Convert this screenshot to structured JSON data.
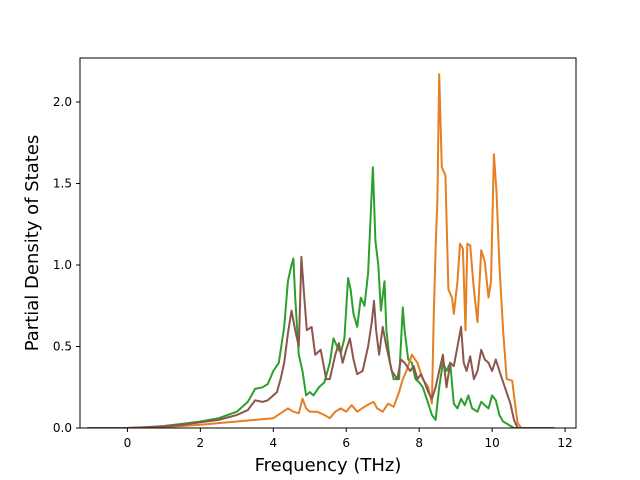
{
  "chart_data": {
    "type": "line",
    "title": "",
    "xlabel": "Frequency (THz)",
    "ylabel": "Partial Density of States",
    "xlim": [
      -1.3,
      12.3
    ],
    "ylim": [
      0,
      2.27
    ],
    "xticks": [
      0,
      2,
      4,
      6,
      8,
      10,
      12
    ],
    "yticks": [
      0.0,
      0.5,
      1.0,
      1.5,
      2.0
    ],
    "xtick_labels": [
      "0",
      "2",
      "4",
      "6",
      "8",
      "10",
      "12"
    ],
    "ytick_labels": [
      "0.0",
      "0.5",
      "1.0",
      "1.5",
      "2.0"
    ],
    "grid": false,
    "legend": "none",
    "series": [
      {
        "color": "#2ca02c",
        "points": [
          [
            -1.1,
            0
          ],
          [
            0,
            0
          ],
          [
            0.5,
            0.004
          ],
          [
            1.0,
            0.012
          ],
          [
            1.5,
            0.025
          ],
          [
            2.0,
            0.04
          ],
          [
            2.5,
            0.06
          ],
          [
            3.0,
            0.1
          ],
          [
            3.3,
            0.16
          ],
          [
            3.5,
            0.24
          ],
          [
            3.7,
            0.25
          ],
          [
            3.85,
            0.27
          ],
          [
            4.0,
            0.35
          ],
          [
            4.15,
            0.4
          ],
          [
            4.3,
            0.62
          ],
          [
            4.4,
            0.9
          ],
          [
            4.5,
            1.0
          ],
          [
            4.55,
            1.04
          ],
          [
            4.6,
            0.8
          ],
          [
            4.7,
            0.45
          ],
          [
            4.8,
            0.35
          ],
          [
            4.9,
            0.2
          ],
          [
            5.0,
            0.22
          ],
          [
            5.1,
            0.2
          ],
          [
            5.25,
            0.25
          ],
          [
            5.4,
            0.28
          ],
          [
            5.55,
            0.4
          ],
          [
            5.65,
            0.55
          ],
          [
            5.75,
            0.5
          ],
          [
            5.85,
            0.46
          ],
          [
            5.95,
            0.55
          ],
          [
            6.05,
            0.92
          ],
          [
            6.12,
            0.85
          ],
          [
            6.2,
            0.7
          ],
          [
            6.3,
            0.62
          ],
          [
            6.4,
            0.8
          ],
          [
            6.5,
            0.75
          ],
          [
            6.6,
            0.95
          ],
          [
            6.68,
            1.35
          ],
          [
            6.73,
            1.6
          ],
          [
            6.8,
            1.15
          ],
          [
            6.88,
            1.0
          ],
          [
            6.95,
            0.72
          ],
          [
            7.05,
            0.9
          ],
          [
            7.1,
            0.6
          ],
          [
            7.2,
            0.4
          ],
          [
            7.3,
            0.3
          ],
          [
            7.45,
            0.3
          ],
          [
            7.55,
            0.74
          ],
          [
            7.6,
            0.6
          ],
          [
            7.7,
            0.42
          ],
          [
            7.8,
            0.4
          ],
          [
            7.9,
            0.3
          ],
          [
            8.0,
            0.28
          ],
          [
            8.1,
            0.25
          ],
          [
            8.25,
            0.15
          ],
          [
            8.35,
            0.08
          ],
          [
            8.45,
            0.05
          ],
          [
            8.55,
            0.25
          ],
          [
            8.65,
            0.4
          ],
          [
            8.75,
            0.35
          ],
          [
            8.85,
            0.4
          ],
          [
            8.95,
            0.15
          ],
          [
            9.05,
            0.12
          ],
          [
            9.15,
            0.18
          ],
          [
            9.25,
            0.14
          ],
          [
            9.35,
            0.2
          ],
          [
            9.45,
            0.12
          ],
          [
            9.6,
            0.1
          ],
          [
            9.7,
            0.16
          ],
          [
            9.8,
            0.14
          ],
          [
            9.9,
            0.12
          ],
          [
            10.0,
            0.2
          ],
          [
            10.1,
            0.17
          ],
          [
            10.2,
            0.08
          ],
          [
            10.3,
            0.04
          ],
          [
            10.45,
            0.02
          ],
          [
            10.6,
            0
          ],
          [
            11.7,
            0
          ]
        ]
      },
      {
        "color": "#e67e22",
        "points": [
          [
            -1.1,
            0
          ],
          [
            0,
            0
          ],
          [
            0.5,
            0.003
          ],
          [
            1.0,
            0.007
          ],
          [
            1.5,
            0.012
          ],
          [
            2.0,
            0.02
          ],
          [
            2.5,
            0.03
          ],
          [
            3.0,
            0.04
          ],
          [
            3.5,
            0.05
          ],
          [
            4.0,
            0.06
          ],
          [
            4.2,
            0.09
          ],
          [
            4.4,
            0.12
          ],
          [
            4.55,
            0.1
          ],
          [
            4.7,
            0.09
          ],
          [
            4.8,
            0.18
          ],
          [
            4.9,
            0.12
          ],
          [
            5.0,
            0.1
          ],
          [
            5.2,
            0.1
          ],
          [
            5.4,
            0.08
          ],
          [
            5.55,
            0.06
          ],
          [
            5.7,
            0.1
          ],
          [
            5.85,
            0.12
          ],
          [
            6.0,
            0.1
          ],
          [
            6.15,
            0.14
          ],
          [
            6.3,
            0.1
          ],
          [
            6.5,
            0.13
          ],
          [
            6.65,
            0.15
          ],
          [
            6.75,
            0.16
          ],
          [
            6.85,
            0.12
          ],
          [
            7.0,
            0.1
          ],
          [
            7.15,
            0.15
          ],
          [
            7.3,
            0.13
          ],
          [
            7.45,
            0.22
          ],
          [
            7.55,
            0.3
          ],
          [
            7.65,
            0.35
          ],
          [
            7.8,
            0.45
          ],
          [
            7.95,
            0.4
          ],
          [
            8.1,
            0.3
          ],
          [
            8.25,
            0.25
          ],
          [
            8.35,
            0.15
          ],
          [
            8.4,
            0.7
          ],
          [
            8.45,
            1.1
          ],
          [
            8.5,
            1.4
          ],
          [
            8.55,
            2.17
          ],
          [
            8.62,
            1.6
          ],
          [
            8.72,
            1.55
          ],
          [
            8.8,
            0.85
          ],
          [
            8.9,
            0.8
          ],
          [
            8.95,
            0.7
          ],
          [
            9.05,
            0.9
          ],
          [
            9.12,
            1.13
          ],
          [
            9.2,
            1.1
          ],
          [
            9.27,
            0.6
          ],
          [
            9.32,
            1.13
          ],
          [
            9.4,
            1.12
          ],
          [
            9.5,
            0.85
          ],
          [
            9.6,
            0.65
          ],
          [
            9.7,
            1.09
          ],
          [
            9.8,
            1.02
          ],
          [
            9.9,
            0.8
          ],
          [
            9.97,
            0.9
          ],
          [
            10.05,
            1.68
          ],
          [
            10.12,
            1.45
          ],
          [
            10.2,
            1.0
          ],
          [
            10.3,
            0.6
          ],
          [
            10.4,
            0.3
          ],
          [
            10.55,
            0.29
          ],
          [
            10.6,
            0.2
          ],
          [
            10.7,
            0.03
          ],
          [
            10.8,
            0
          ],
          [
            11.7,
            0
          ]
        ]
      },
      {
        "color": "#8c564b",
        "points": [
          [
            -1.1,
            0
          ],
          [
            0,
            0
          ],
          [
            0.5,
            0.004
          ],
          [
            1.0,
            0.01
          ],
          [
            1.5,
            0.02
          ],
          [
            2.0,
            0.035
          ],
          [
            2.5,
            0.05
          ],
          [
            3.0,
            0.08
          ],
          [
            3.3,
            0.11
          ],
          [
            3.5,
            0.17
          ],
          [
            3.7,
            0.16
          ],
          [
            3.85,
            0.17
          ],
          [
            4.0,
            0.2
          ],
          [
            4.1,
            0.22
          ],
          [
            4.2,
            0.3
          ],
          [
            4.3,
            0.4
          ],
          [
            4.4,
            0.58
          ],
          [
            4.5,
            0.72
          ],
          [
            4.6,
            0.6
          ],
          [
            4.7,
            0.5
          ],
          [
            4.77,
            1.05
          ],
          [
            4.85,
            0.8
          ],
          [
            4.92,
            0.6
          ],
          [
            5.05,
            0.62
          ],
          [
            5.15,
            0.45
          ],
          [
            5.3,
            0.48
          ],
          [
            5.45,
            0.3
          ],
          [
            5.55,
            0.3
          ],
          [
            5.7,
            0.45
          ],
          [
            5.8,
            0.52
          ],
          [
            5.9,
            0.4
          ],
          [
            6.0,
            0.48
          ],
          [
            6.1,
            0.55
          ],
          [
            6.2,
            0.42
          ],
          [
            6.3,
            0.33
          ],
          [
            6.45,
            0.35
          ],
          [
            6.6,
            0.5
          ],
          [
            6.7,
            0.65
          ],
          [
            6.76,
            0.78
          ],
          [
            6.82,
            0.6
          ],
          [
            6.9,
            0.45
          ],
          [
            7.0,
            0.62
          ],
          [
            7.1,
            0.5
          ],
          [
            7.25,
            0.35
          ],
          [
            7.4,
            0.3
          ],
          [
            7.5,
            0.42
          ],
          [
            7.6,
            0.4
          ],
          [
            7.75,
            0.35
          ],
          [
            7.85,
            0.38
          ],
          [
            7.95,
            0.3
          ],
          [
            8.05,
            0.33
          ],
          [
            8.15,
            0.28
          ],
          [
            8.25,
            0.22
          ],
          [
            8.35,
            0.18
          ],
          [
            8.45,
            0.25
          ],
          [
            8.55,
            0.35
          ],
          [
            8.65,
            0.45
          ],
          [
            8.75,
            0.25
          ],
          [
            8.85,
            0.4
          ],
          [
            8.95,
            0.38
          ],
          [
            9.05,
            0.5
          ],
          [
            9.15,
            0.62
          ],
          [
            9.22,
            0.4
          ],
          [
            9.3,
            0.35
          ],
          [
            9.4,
            0.44
          ],
          [
            9.5,
            0.3
          ],
          [
            9.6,
            0.35
          ],
          [
            9.7,
            0.48
          ],
          [
            9.8,
            0.42
          ],
          [
            9.9,
            0.4
          ],
          [
            10.0,
            0.35
          ],
          [
            10.1,
            0.42
          ],
          [
            10.2,
            0.35
          ],
          [
            10.35,
            0.25
          ],
          [
            10.5,
            0.15
          ],
          [
            10.6,
            0.05
          ],
          [
            10.7,
            0
          ],
          [
            11.7,
            0
          ]
        ]
      }
    ]
  }
}
